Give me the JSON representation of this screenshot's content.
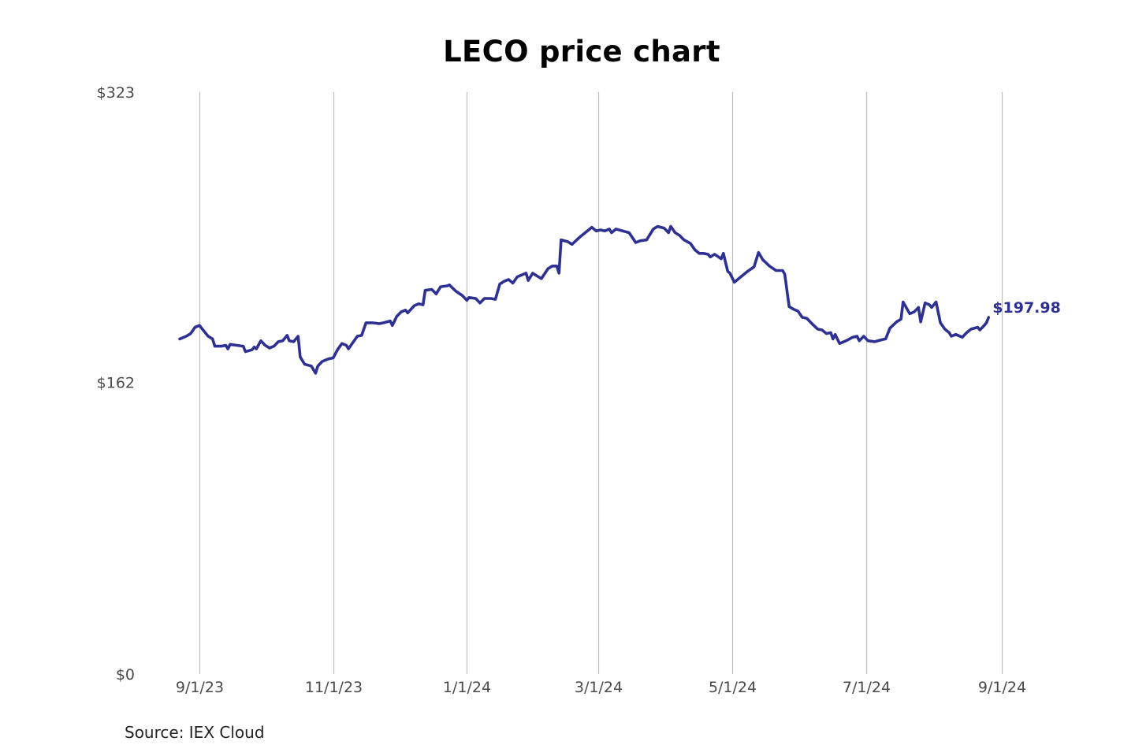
{
  "chart_data": {
    "type": "line",
    "title": "LECO price chart",
    "xlabel": "",
    "ylabel": "",
    "source": "Source: IEX Cloud",
    "line_color": "#2e3192",
    "grid_color": "#bdbdbd",
    "grid": "vertical",
    "ylim": [
      0,
      323
    ],
    "y_ticks": [
      {
        "value": 0,
        "label": "$0"
      },
      {
        "value": 162,
        "label": "$162"
      },
      {
        "value": 323,
        "label": "$323"
      }
    ],
    "x_range": [
      "2023-08-23",
      "2024-09-01"
    ],
    "x_ticks": [
      {
        "date": "2023-09-01",
        "label": "9/1/23"
      },
      {
        "date": "2023-11-01",
        "label": "11/1/23"
      },
      {
        "date": "2024-01-01",
        "label": "1/1/24"
      },
      {
        "date": "2024-03-01",
        "label": "3/1/24"
      },
      {
        "date": "2024-05-01",
        "label": "5/1/24"
      },
      {
        "date": "2024-07-01",
        "label": "7/1/24"
      },
      {
        "date": "2024-09-01",
        "label": "9/1/24"
      }
    ],
    "last_value_label": "$197.98",
    "series": [
      {
        "name": "LECO",
        "points": [
          [
            "2023-08-23",
            186.0
          ],
          [
            "2023-08-26",
            187.5
          ],
          [
            "2023-08-28",
            189.0
          ],
          [
            "2023-08-30",
            192.5
          ],
          [
            "2023-09-01",
            193.5
          ],
          [
            "2023-09-03",
            190.5
          ],
          [
            "2023-09-05",
            187.5
          ],
          [
            "2023-09-07",
            186.0
          ],
          [
            "2023-09-08",
            182.0
          ],
          [
            "2023-09-11",
            182.0
          ],
          [
            "2023-09-13",
            182.5
          ],
          [
            "2023-09-14",
            180.5
          ],
          [
            "2023-09-15",
            183.0
          ],
          [
            "2023-09-18",
            182.5
          ],
          [
            "2023-09-21",
            182.0
          ],
          [
            "2023-09-22",
            179.0
          ],
          [
            "2023-09-25",
            180.0
          ],
          [
            "2023-09-26",
            181.5
          ],
          [
            "2023-09-27",
            180.5
          ],
          [
            "2023-09-29",
            185.0
          ],
          [
            "2023-10-01",
            182.5
          ],
          [
            "2023-10-03",
            181.0
          ],
          [
            "2023-10-05",
            182.0
          ],
          [
            "2023-10-07",
            184.5
          ],
          [
            "2023-10-09",
            185.0
          ],
          [
            "2023-10-11",
            188.0
          ],
          [
            "2023-10-12",
            185.0
          ],
          [
            "2023-10-14",
            184.5
          ],
          [
            "2023-10-16",
            187.5
          ],
          [
            "2023-10-17",
            176.0
          ],
          [
            "2023-10-19",
            172.0
          ],
          [
            "2023-10-22",
            171.0
          ],
          [
            "2023-10-24",
            167.0
          ],
          [
            "2023-10-25",
            171.0
          ],
          [
            "2023-10-27",
            173.5
          ],
          [
            "2023-10-30",
            175.0
          ],
          [
            "2023-11-01",
            175.5
          ],
          [
            "2023-11-03",
            180.0
          ],
          [
            "2023-11-05",
            183.5
          ],
          [
            "2023-11-07",
            182.5
          ],
          [
            "2023-11-08",
            180.5
          ],
          [
            "2023-11-10",
            184.0
          ],
          [
            "2023-11-12",
            187.5
          ],
          [
            "2023-11-14",
            188.0
          ],
          [
            "2023-11-16",
            195.0
          ],
          [
            "2023-11-19",
            195.0
          ],
          [
            "2023-11-22",
            194.5
          ],
          [
            "2023-11-24",
            195.0
          ],
          [
            "2023-11-27",
            196.0
          ],
          [
            "2023-11-28",
            193.5
          ],
          [
            "2023-11-30",
            198.5
          ],
          [
            "2023-12-02",
            201.0
          ],
          [
            "2023-12-04",
            202.0
          ],
          [
            "2023-12-05",
            200.5
          ],
          [
            "2023-12-08",
            204.5
          ],
          [
            "2023-12-10",
            205.5
          ],
          [
            "2023-12-12",
            205.0
          ],
          [
            "2023-12-13",
            213.0
          ],
          [
            "2023-12-16",
            213.5
          ],
          [
            "2023-12-18",
            211.0
          ],
          [
            "2023-12-20",
            215.0
          ],
          [
            "2023-12-23",
            215.5
          ],
          [
            "2023-12-24",
            216.0
          ],
          [
            "2023-12-27",
            212.5
          ],
          [
            "2023-12-30",
            210.0
          ],
          [
            "2024-01-01",
            207.5
          ],
          [
            "2024-01-02",
            209.0
          ],
          [
            "2024-01-05",
            208.5
          ],
          [
            "2024-01-07",
            206.0
          ],
          [
            "2024-01-09",
            208.5
          ],
          [
            "2024-01-12",
            208.5
          ],
          [
            "2024-01-14",
            208.0
          ],
          [
            "2024-01-16",
            216.5
          ],
          [
            "2024-01-18",
            218.0
          ],
          [
            "2024-01-20",
            219.0
          ],
          [
            "2024-01-22",
            217.0
          ],
          [
            "2024-01-24",
            220.5
          ],
          [
            "2024-01-26",
            221.5
          ],
          [
            "2024-01-28",
            222.5
          ],
          [
            "2024-01-29",
            218.5
          ],
          [
            "2024-01-31",
            222.5
          ],
          [
            "2024-02-02",
            221.0
          ],
          [
            "2024-02-04",
            219.5
          ],
          [
            "2024-02-07",
            225.0
          ],
          [
            "2024-02-09",
            226.5
          ],
          [
            "2024-02-11",
            226.5
          ],
          [
            "2024-02-12",
            222.5
          ],
          [
            "2024-02-13",
            241.0
          ],
          [
            "2024-02-16",
            240.0
          ],
          [
            "2024-02-18",
            238.5
          ],
          [
            "2024-02-21",
            242.0
          ],
          [
            "2024-02-23",
            244.0
          ],
          [
            "2024-02-25",
            246.0
          ],
          [
            "2024-02-27",
            248.0
          ],
          [
            "2024-02-29",
            246.0
          ],
          [
            "2024-03-02",
            246.5
          ],
          [
            "2024-03-04",
            246.0
          ],
          [
            "2024-03-06",
            247.0
          ],
          [
            "2024-03-07",
            245.0
          ],
          [
            "2024-03-09",
            247.0
          ],
          [
            "2024-03-12",
            246.0
          ],
          [
            "2024-03-15",
            245.0
          ],
          [
            "2024-03-18",
            239.5
          ],
          [
            "2024-03-20",
            240.5
          ],
          [
            "2024-03-23",
            241.0
          ],
          [
            "2024-03-26",
            247.0
          ],
          [
            "2024-03-28",
            248.5
          ],
          [
            "2024-03-31",
            247.5
          ],
          [
            "2024-04-02",
            245.0
          ],
          [
            "2024-04-03",
            248.5
          ],
          [
            "2024-04-05",
            245.0
          ],
          [
            "2024-04-07",
            243.5
          ],
          [
            "2024-04-09",
            241.0
          ],
          [
            "2024-04-12",
            239.0
          ],
          [
            "2024-04-14",
            235.5
          ],
          [
            "2024-04-16",
            233.5
          ],
          [
            "2024-04-18",
            233.5
          ],
          [
            "2024-04-20",
            233.0
          ],
          [
            "2024-04-21",
            231.5
          ],
          [
            "2024-04-23",
            233.0
          ],
          [
            "2024-04-26",
            230.5
          ],
          [
            "2024-04-27",
            233.5
          ],
          [
            "2024-04-28",
            228.5
          ],
          [
            "2024-04-29",
            223.5
          ],
          [
            "2024-04-30",
            222.5
          ],
          [
            "2024-05-02",
            217.5
          ],
          [
            "2024-05-05",
            220.5
          ],
          [
            "2024-05-08",
            223.5
          ],
          [
            "2024-05-11",
            226.0
          ],
          [
            "2024-05-13",
            234.0
          ],
          [
            "2024-05-15",
            230.0
          ],
          [
            "2024-05-18",
            226.5
          ],
          [
            "2024-05-21",
            224.0
          ],
          [
            "2024-05-24",
            224.0
          ],
          [
            "2024-05-25",
            222.0
          ],
          [
            "2024-05-27",
            204.0
          ],
          [
            "2024-05-29",
            202.5
          ],
          [
            "2024-05-31",
            201.5
          ],
          [
            "2024-06-02",
            198.0
          ],
          [
            "2024-06-04",
            197.5
          ],
          [
            "2024-06-06",
            195.0
          ],
          [
            "2024-06-09",
            191.5
          ],
          [
            "2024-06-11",
            191.0
          ],
          [
            "2024-06-13",
            189.0
          ],
          [
            "2024-06-15",
            189.5
          ],
          [
            "2024-06-16",
            186.0
          ],
          [
            "2024-06-17",
            188.5
          ],
          [
            "2024-06-19",
            183.5
          ],
          [
            "2024-06-22",
            185.0
          ],
          [
            "2024-06-25",
            187.0
          ],
          [
            "2024-06-27",
            187.5
          ],
          [
            "2024-06-28",
            185.0
          ],
          [
            "2024-06-30",
            187.5
          ],
          [
            "2024-07-02",
            185.0
          ],
          [
            "2024-07-05",
            184.5
          ],
          [
            "2024-07-08",
            185.5
          ],
          [
            "2024-07-10",
            186.0
          ],
          [
            "2024-07-12",
            192.0
          ],
          [
            "2024-07-15",
            195.5
          ],
          [
            "2024-07-17",
            197.0
          ],
          [
            "2024-07-18",
            206.5
          ],
          [
            "2024-07-21",
            200.0
          ],
          [
            "2024-07-23",
            201.0
          ],
          [
            "2024-07-25",
            203.5
          ],
          [
            "2024-07-26",
            195.5
          ],
          [
            "2024-07-28",
            206.0
          ],
          [
            "2024-07-30",
            205.0
          ],
          [
            "2024-07-31",
            203.5
          ],
          [
            "2024-08-02",
            206.5
          ],
          [
            "2024-08-04",
            195.0
          ],
          [
            "2024-08-06",
            191.5
          ],
          [
            "2024-08-08",
            189.5
          ],
          [
            "2024-08-09",
            187.5
          ],
          [
            "2024-08-11",
            188.5
          ],
          [
            "2024-08-14",
            187.0
          ],
          [
            "2024-08-16",
            189.5
          ],
          [
            "2024-08-18",
            191.5
          ],
          [
            "2024-08-21",
            192.5
          ],
          [
            "2024-08-22",
            191.0
          ],
          [
            "2024-08-24",
            193.5
          ],
          [
            "2024-08-25",
            195.0
          ],
          [
            "2024-08-26",
            197.98
          ]
        ]
      }
    ]
  }
}
